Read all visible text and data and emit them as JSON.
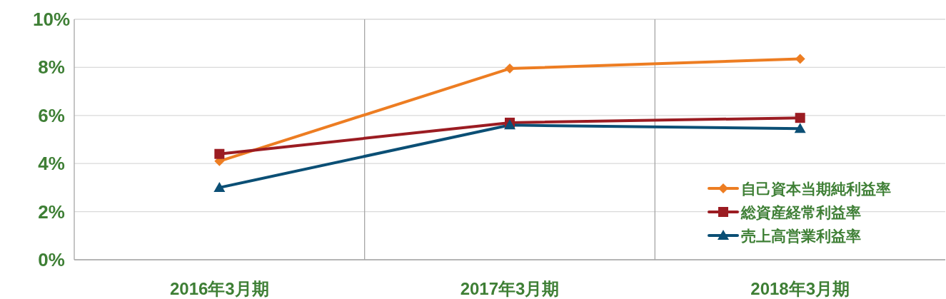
{
  "chart_data": {
    "type": "line",
    "categories": [
      "2016年3月期",
      "2017年3月期",
      "2018年3月期"
    ],
    "ylim": [
      0,
      10
    ],
    "yticks": [
      {
        "value": 0,
        "label": "0%"
      },
      {
        "value": 2,
        "label": "2%"
      },
      {
        "value": 4,
        "label": "4%"
      },
      {
        "value": 6,
        "label": "6%"
      },
      {
        "value": 8,
        "label": "8%"
      },
      {
        "value": 10,
        "label": "10%"
      }
    ],
    "grid": true,
    "legend": "bottom right",
    "series": [
      {
        "name": "自己資本当期純利益率",
        "color": "#ed7d22",
        "marker": "diamond",
        "values": [
          4.1,
          7.95,
          8.35
        ]
      },
      {
        "name": "総資産経常利益率",
        "color": "#9b1c22",
        "marker": "square",
        "values": [
          4.4,
          5.7,
          5.9
        ]
      },
      {
        "name": "売上高営業利益率",
        "color": "#0b4f75",
        "marker": "triangle",
        "values": [
          3.0,
          5.6,
          5.45
        ]
      }
    ]
  }
}
